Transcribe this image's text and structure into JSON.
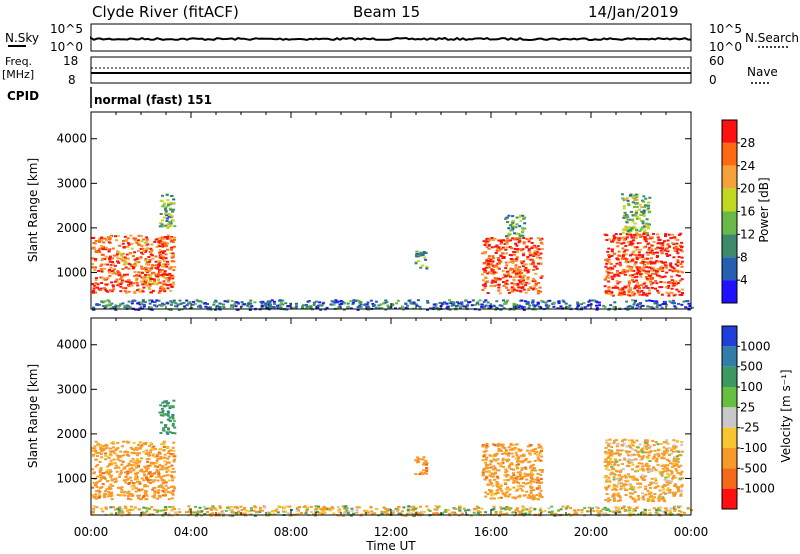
{
  "header": {
    "station": "Clyde River (fitACF)",
    "beam": "Beam 15",
    "date": "14/Jan/2019"
  },
  "aux_panels": {
    "nsky_label": "N.Sky",
    "nsky_ticks": [
      "10^5",
      "10^0"
    ],
    "nsearch_label": "N.Search",
    "nsearch_ticks": [
      "10^5",
      "10^0"
    ],
    "freq_label_1": "Freq.",
    "freq_label_2": "[MHz]",
    "freq_ticks": [
      "18",
      "8"
    ],
    "nave_label": "Nave",
    "nave_ticks": [
      "60",
      "0"
    ],
    "cpid_label": "CPID",
    "cpid_value": "normal (fast) 151"
  },
  "chart_data": [
    {
      "type": "heatmap",
      "name": "power",
      "ylabel": "Slant Range [km]",
      "xlabel": "Time UT",
      "xlim": [
        0,
        24
      ],
      "ylim": [
        180,
        4600
      ],
      "yticks": [
        "1000",
        "2000",
        "3000",
        "4000"
      ],
      "colorbar_label": "Power [dB]",
      "colorbar_ticks": [
        "4",
        "8",
        "12",
        "16",
        "20",
        "24",
        "28"
      ],
      "colorbar_colors": [
        "#1f10ff",
        "#255fb0",
        "#3c8a6a",
        "#6ab84a",
        "#c0d820",
        "#f6a23a",
        "#ff6a10",
        "#ff1010"
      ],
      "scatter_regions": [
        {
          "t0": 0.0,
          "t1": 3.3,
          "r0": 550,
          "r1": 1850,
          "level": 26
        },
        {
          "t0": 2.7,
          "t1": 3.3,
          "r0": 2000,
          "r1": 2800,
          "level": 14
        },
        {
          "t0": 12.9,
          "t1": 13.4,
          "r0": 1100,
          "r1": 1500,
          "level": 12
        },
        {
          "t0": 15.6,
          "t1": 18.0,
          "r0": 550,
          "r1": 1800,
          "level": 27
        },
        {
          "t0": 16.5,
          "t1": 17.3,
          "r0": 1800,
          "r1": 2300,
          "level": 12
        },
        {
          "t0": 20.5,
          "t1": 23.6,
          "r0": 500,
          "r1": 1900,
          "level": 28
        },
        {
          "t0": 21.2,
          "t1": 22.3,
          "r0": 1900,
          "r1": 2800,
          "level": 14
        },
        {
          "t0": 0.0,
          "t1": 24.0,
          "r0": 180,
          "r1": 400,
          "level": 8
        }
      ]
    },
    {
      "type": "heatmap",
      "name": "velocity",
      "ylabel": "Slant Range [km]",
      "xlabel": "Time UT",
      "xlim": [
        0,
        24
      ],
      "ylim": [
        180,
        4600
      ],
      "yticks": [
        "1000",
        "2000",
        "3000",
        "4000"
      ],
      "xticks": [
        "00:00",
        "04:00",
        "08:00",
        "12:00",
        "16:00",
        "20:00",
        "00:00"
      ],
      "colorbar_label": "Velocity [m s⁻¹]",
      "colorbar_ticks": [
        "1000",
        "500",
        "100",
        "25",
        "-25",
        "-100",
        "-500",
        "-1000"
      ],
      "colorbar_colors": [
        "#1f3fd8",
        "#2f7fa8",
        "#3c9a60",
        "#66c040",
        "#c8c8c8",
        "#f7c630",
        "#f79a2a",
        "#f36a1a",
        "#ff1010"
      ],
      "scatter_regions": [
        {
          "t0": 0.0,
          "t1": 3.3,
          "r0": 550,
          "r1": 1850,
          "level": -300
        },
        {
          "t0": 2.7,
          "t1": 3.3,
          "r0": 2000,
          "r1": 2800,
          "level": 300
        },
        {
          "t0": 12.9,
          "t1": 13.4,
          "r0": 1100,
          "r1": 1500,
          "level": -400
        },
        {
          "t0": 15.6,
          "t1": 18.0,
          "r0": 550,
          "r1": 1800,
          "level": -300
        },
        {
          "t0": 20.5,
          "t1": 23.6,
          "r0": 500,
          "r1": 1900,
          "level": -200
        },
        {
          "t0": 0.0,
          "t1": 24.0,
          "r0": 180,
          "r1": 400,
          "level": -80
        }
      ]
    }
  ]
}
